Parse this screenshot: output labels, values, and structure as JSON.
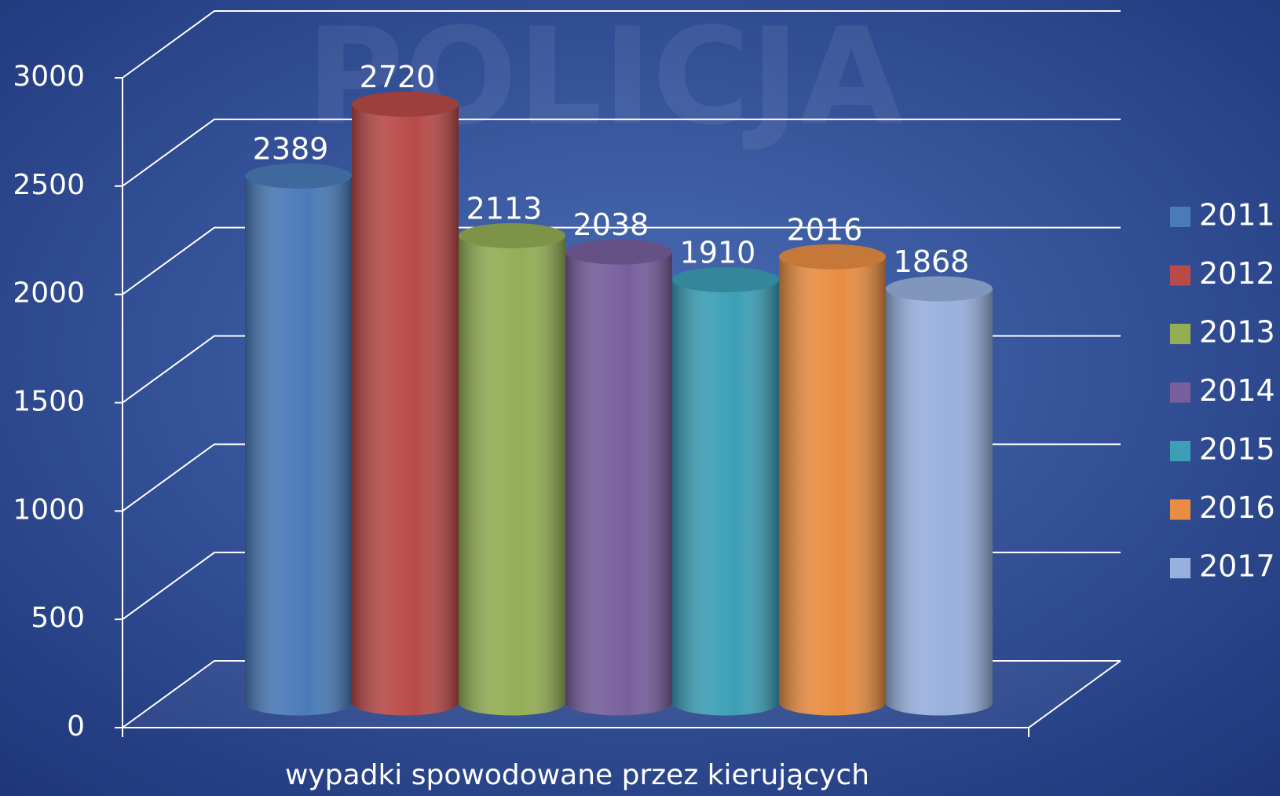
{
  "chart_data": {
    "type": "bar",
    "watermark": "POLICJA",
    "categories": [
      "wypadki spowodowane przez kierujących"
    ],
    "series": [
      {
        "name": "2011",
        "color": "#4a7ab8",
        "values": [
          2389
        ]
      },
      {
        "name": "2012",
        "color": "#b84a48",
        "values": [
          2720
        ]
      },
      {
        "name": "2013",
        "color": "#93ae55",
        "values": [
          2113
        ]
      },
      {
        "name": "2014",
        "color": "#775f9c",
        "values": [
          2038
        ]
      },
      {
        "name": "2015",
        "color": "#3c9fb6",
        "values": [
          1910
        ]
      },
      {
        "name": "2016",
        "color": "#e88d42",
        "values": [
          2016
        ]
      },
      {
        "name": "2017",
        "color": "#98b0dd",
        "values": [
          1868
        ]
      }
    ],
    "ylim": [
      0,
      3000
    ],
    "yticks": [
      0,
      500,
      1000,
      1500,
      2000,
      2500,
      3000
    ],
    "grid": true,
    "legend": "right"
  }
}
